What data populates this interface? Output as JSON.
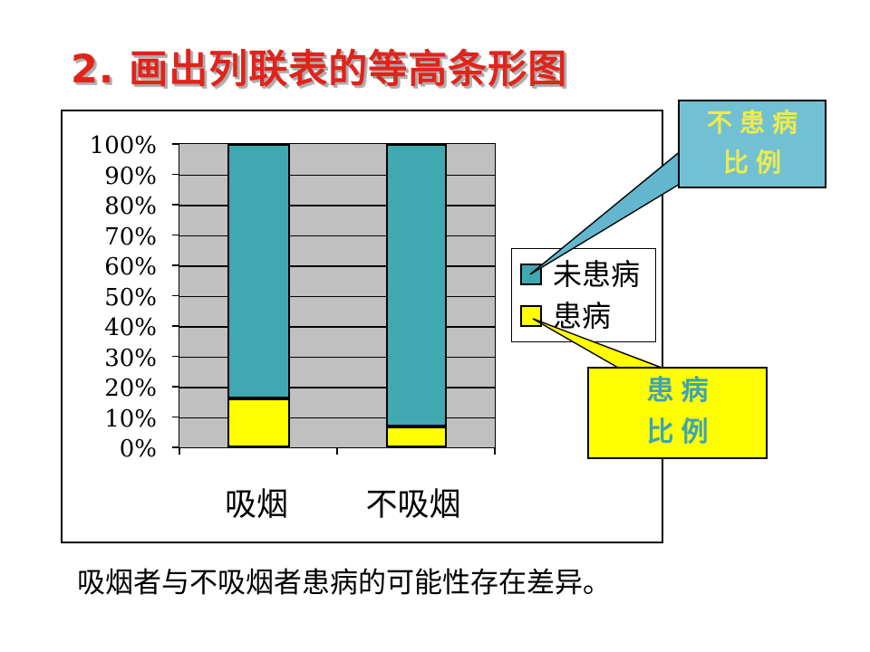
{
  "title": {
    "text": "2. 画出列联表的等高条形图",
    "color": "#E2231A",
    "shadow_color": "#ABABAB"
  },
  "chart_data": {
    "type": "bar",
    "subtype": "100%-stacked-column",
    "categories": [
      "吸烟",
      "不吸烟"
    ],
    "series": [
      {
        "name": "未患病",
        "color": "#3FA8B0",
        "values": [
          84,
          93
        ]
      },
      {
        "name": "患病",
        "color": "#FFFF00",
        "values": [
          16,
          7
        ]
      }
    ],
    "y_ticks": [
      "100%",
      "90%",
      "80%",
      "70%",
      "60%",
      "50%",
      "40%",
      "30%",
      "20%",
      "10%",
      "0%"
    ],
    "ylim": [
      0,
      100
    ],
    "grid": true,
    "plot_background": "#C0C0C0",
    "legend_position": "right"
  },
  "callouts": [
    {
      "name": "not-diseased-proportion",
      "lines": [
        "不患病",
        "比例"
      ],
      "background": "#72C0D4",
      "text_color": "#EDEB4E",
      "pointer_color": "#62B7CE"
    },
    {
      "name": "diseased-proportion",
      "lines": [
        "患病",
        "比例"
      ],
      "background": "#FFFF00",
      "text_color": "#3FA3B5",
      "pointer_color": "#FFFF00"
    }
  ],
  "caption": {
    "text": "吸烟者与不吸烟者患病的可能性存在差异。"
  }
}
